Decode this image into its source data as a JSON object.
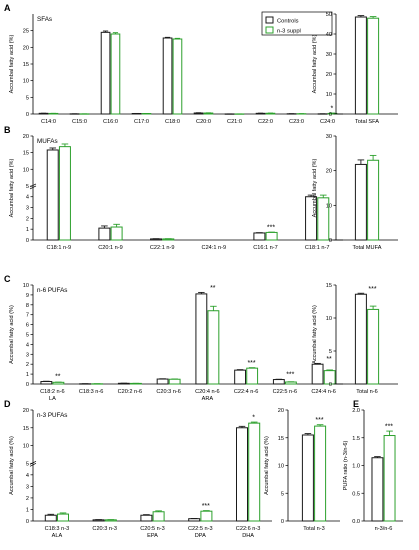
{
  "colors": {
    "controls": "#1a1a1a",
    "n3": "#2ca02c"
  },
  "legend": {
    "items": [
      "Controls",
      "n-3 suppl"
    ]
  },
  "chart_data": [
    {
      "id": "A-left",
      "type": "bar",
      "panel": "A",
      "title": "SFAs",
      "ylabel": "Accumbal fatty acid (%)",
      "ylim": [
        0,
        30
      ],
      "yticks": [
        0,
        5,
        10,
        15,
        20,
        25
      ],
      "categories": [
        "C14:0",
        "C15:0",
        "C16:0",
        "C17:0",
        "C18:0",
        "C20:0",
        "C21:0",
        "C22:0",
        "C23:0",
        "C24:0"
      ],
      "series": [
        {
          "name": "Controls",
          "values": [
            0.2,
            0.05,
            24.5,
            0.15,
            22.8,
            0.3,
            0.02,
            0.2,
            0.07,
            0.05
          ],
          "err": [
            0.03,
            0.01,
            0.4,
            0.02,
            0.2,
            0.08,
            0.01,
            0.05,
            0.02,
            0.01
          ]
        },
        {
          "name": "n-3 suppl",
          "values": [
            0.17,
            0.04,
            24.0,
            0.14,
            22.5,
            0.29,
            0.02,
            0.22,
            0.08,
            0.18
          ],
          "err": [
            0.03,
            0.01,
            0.4,
            0.02,
            0.2,
            0.07,
            0.01,
            0.06,
            0.02,
            0.1
          ]
        }
      ],
      "annotations": [
        {
          "category": "C24:0",
          "text": "*"
        }
      ]
    },
    {
      "id": "A-right",
      "type": "bar",
      "ylabel": "Accumbal fatty acid (%)",
      "ylim": [
        0,
        50
      ],
      "yticks": [
        0,
        10,
        20,
        30,
        40,
        50
      ],
      "categories": [
        "Total SFA"
      ],
      "series": [
        {
          "name": "Controls",
          "values": [
            48.5
          ],
          "err": [
            0.7
          ]
        },
        {
          "name": "n-3 suppl",
          "values": [
            47.9
          ],
          "err": [
            0.8
          ]
        }
      ],
      "annotations": []
    },
    {
      "id": "B-left",
      "type": "bar",
      "panel": "B",
      "title": "MUFAs",
      "ylabel": "Accumbal fatty acid (%)",
      "scale": "broken",
      "ylim": [
        0,
        20
      ],
      "yticks": [
        0,
        1,
        2,
        3,
        4,
        5,
        10,
        15,
        20
      ],
      "categories": [
        "C18:1 n-9",
        "C20:1 n-9",
        "C22:1 n-9",
        "C24:1 n-9",
        "C16:1 n-7",
        "C18:1 n-7"
      ],
      "series": [
        {
          "name": "Controls",
          "values": [
            15.8,
            1.1,
            0.1,
            0.0,
            0.65,
            4.0
          ],
          "err": [
            0.6,
            0.2,
            0.02,
            0.0,
            0.03,
            0.15
          ]
        },
        {
          "name": "n-3 suppl",
          "values": [
            16.8,
            1.2,
            0.1,
            0.0,
            0.7,
            3.9
          ],
          "err": [
            0.8,
            0.25,
            0.02,
            0.0,
            0.03,
            0.25
          ]
        }
      ],
      "annotations": [
        {
          "category": "C16:1 n-7",
          "text": "***"
        }
      ]
    },
    {
      "id": "B-right",
      "type": "bar",
      "ylabel": "Accumbal fatty acid (%)",
      "ylim": [
        0,
        30
      ],
      "yticks": [
        0,
        10,
        20,
        30
      ],
      "categories": [
        "Total MUFA"
      ],
      "series": [
        {
          "name": "Controls",
          "values": [
            21.8
          ],
          "err": [
            1.3
          ]
        },
        {
          "name": "n-3 suppl",
          "values": [
            23.0
          ],
          "err": [
            1.4
          ]
        }
      ],
      "annotations": []
    },
    {
      "id": "C-left",
      "type": "bar",
      "panel": "C",
      "title": "n-6 PUFAs",
      "ylabel": "Accumbal fatty acid (%)",
      "ylim": [
        0,
        10
      ],
      "yticks": [
        0,
        1,
        2,
        3,
        4,
        5,
        6,
        7,
        8,
        9,
        10
      ],
      "categories": [
        "C18:2 n-6",
        "C18:3 n-6",
        "C20:2 n-6",
        "C20:3 n-6",
        "C20:4 n-6",
        "C22:4 n-6",
        "C22:5 n-6",
        "C24:4 n-6"
      ],
      "sublabels": [
        "LA",
        "",
        "",
        "",
        "ARA",
        "",
        "",
        ""
      ],
      "series": [
        {
          "name": "Controls",
          "values": [
            0.25,
            0.02,
            0.07,
            0.5,
            9.1,
            1.4,
            0.45,
            2.0
          ],
          "err": [
            0.03,
            0.01,
            0.01,
            0.03,
            0.15,
            0.05,
            0.03,
            0.08
          ]
        },
        {
          "name": "n-3 suppl",
          "values": [
            0.17,
            0.02,
            0.06,
            0.48,
            7.4,
            1.6,
            0.2,
            1.35
          ],
          "err": [
            0.02,
            0.01,
            0.01,
            0.03,
            0.45,
            0.05,
            0.03,
            0.07
          ]
        }
      ],
      "annotations": [
        {
          "category": "C18:2 n-6",
          "text": "**"
        },
        {
          "category": "C20:4 n-6",
          "text": "**"
        },
        {
          "category": "C22:4 n-6",
          "text": "***"
        },
        {
          "category": "C22:5 n-6",
          "text": "***"
        },
        {
          "category": "C24:4 n-6",
          "text": "**"
        }
      ]
    },
    {
      "id": "C-right",
      "type": "bar",
      "ylabel": "Accumbal fatty acid (%)",
      "ylim": [
        0,
        15
      ],
      "yticks": [
        0,
        5,
        10,
        15
      ],
      "categories": [
        "Total n-6"
      ],
      "series": [
        {
          "name": "Controls",
          "values": [
            13.6
          ],
          "err": [
            0.15
          ]
        },
        {
          "name": "n-3 suppl",
          "values": [
            11.3
          ],
          "err": [
            0.5
          ]
        }
      ],
      "annotations": [
        {
          "category": "Total n-6",
          "text": "***"
        }
      ]
    },
    {
      "id": "D-left",
      "type": "bar",
      "panel": "D",
      "title": "n-3 PUFAs",
      "ylabel": "Accumbal fatty acid (%)",
      "scale": "broken",
      "ylim": [
        0,
        20
      ],
      "yticks": [
        0,
        1,
        2,
        3,
        4,
        5,
        10,
        15,
        20
      ],
      "categories": [
        "C18:3 n-3",
        "C20:3 n-3",
        "C20:5 n-3",
        "C22:5 n-3",
        "C22:6 n-3"
      ],
      "sublabels": [
        "ALA",
        "",
        "EPA",
        "DPA",
        "DHA"
      ],
      "series": [
        {
          "name": "Controls",
          "values": [
            0.5,
            0.1,
            0.5,
            0.2,
            15.0
          ],
          "err": [
            0.08,
            0.02,
            0.05,
            0.02,
            0.4
          ]
        },
        {
          "name": "n-3 suppl",
          "values": [
            0.6,
            0.1,
            0.8,
            0.85,
            16.3
          ],
          "err": [
            0.1,
            0.02,
            0.08,
            0.05,
            0.3
          ]
        }
      ],
      "annotations": [
        {
          "category": "C22:5 n-3",
          "text": "***"
        },
        {
          "category": "C22:6 n-3",
          "text": "*"
        }
      ]
    },
    {
      "id": "D-right",
      "type": "bar",
      "ylabel": "Accumbal fatty acid (%)",
      "ylim": [
        0,
        20
      ],
      "yticks": [
        0,
        5,
        10,
        15,
        20
      ],
      "categories": [
        "Total n-3"
      ],
      "series": [
        {
          "name": "Controls",
          "values": [
            15.5
          ],
          "err": [
            0.25
          ]
        },
        {
          "name": "n-3 suppl",
          "values": [
            17.1
          ],
          "err": [
            0.25
          ]
        }
      ],
      "annotations": [
        {
          "category": "Total n-3",
          "text": "***"
        }
      ]
    },
    {
      "id": "E",
      "type": "bar",
      "panel": "E",
      "ylabel": "PUFA ratio (n-3/n-6)",
      "ylim": [
        0,
        2.0
      ],
      "yticks": [
        0.0,
        0.5,
        1.0,
        1.5,
        2.0
      ],
      "categories": [
        "n-3/n-6"
      ],
      "series": [
        {
          "name": "Controls",
          "values": [
            1.14
          ],
          "err": [
            0.02
          ]
        },
        {
          "name": "n-3 suppl",
          "values": [
            1.54
          ],
          "err": [
            0.08
          ]
        }
      ],
      "annotations": [
        {
          "category": "n-3/n-6",
          "text": "***"
        }
      ]
    }
  ]
}
